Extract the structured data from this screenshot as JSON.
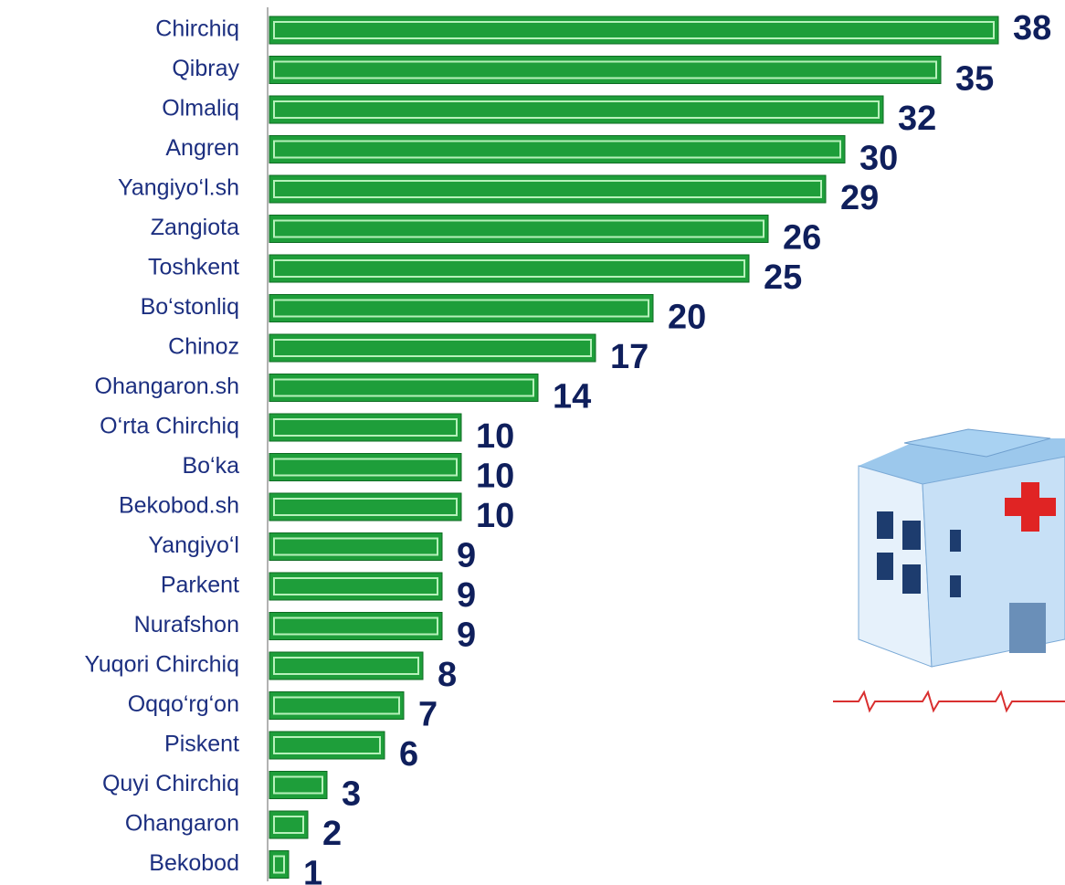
{
  "chart_data": {
    "type": "bar",
    "orientation": "horizontal",
    "categories": [
      "Chirchiq",
      "Qibray",
      "Olmaliq",
      "Angren",
      "Yangiyo‘l.sh",
      "Zangiota",
      "Toshkent",
      "Bo‘stonliq",
      "Chinoz",
      "Ohangaron.sh",
      "O‘rta Chirchiq",
      "Bo‘ka",
      "Bekobod.sh",
      "Yangiyo‘l",
      "Parkent",
      "Nurafshon",
      "Yuqori Chirchiq",
      "Oqqo‘rg‘on",
      "Piskent",
      "Quyi Chirchiq",
      "Ohangaron",
      "Bekobod"
    ],
    "values": [
      38,
      35,
      32,
      30,
      29,
      26,
      25,
      20,
      17,
      14,
      10,
      10,
      10,
      9,
      9,
      9,
      8,
      7,
      6,
      3,
      2,
      1
    ],
    "color": "#1e9e3a"
  }
}
